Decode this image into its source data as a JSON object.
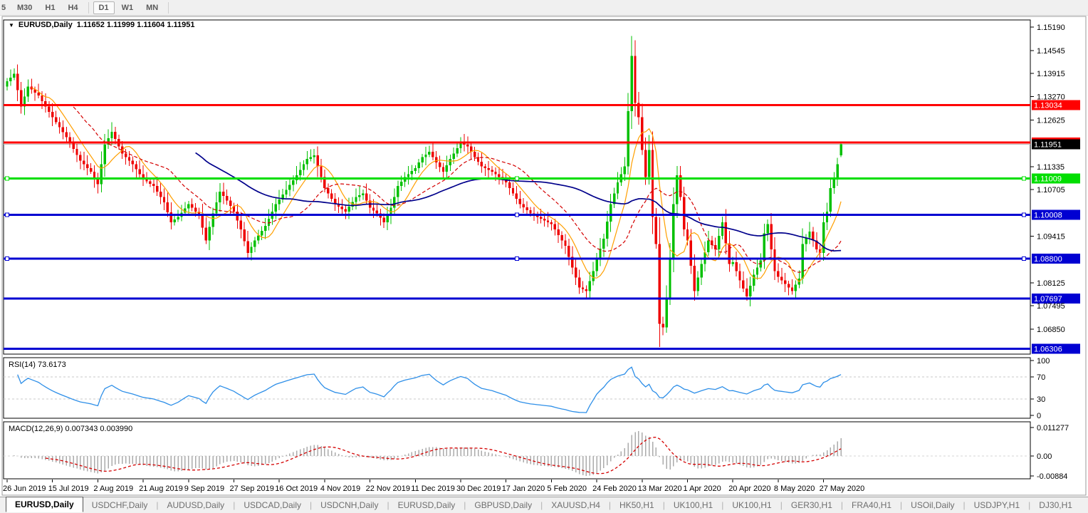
{
  "toolbar": {
    "timeframes": [
      {
        "label": "5",
        "active": false,
        "partial": true
      },
      {
        "label": "M30",
        "active": false
      },
      {
        "label": "H1",
        "active": false
      },
      {
        "label": "H4",
        "active": false
      },
      {
        "label": "D1",
        "active": true
      },
      {
        "label": "W1",
        "active": false
      },
      {
        "label": "MN",
        "active": false
      }
    ]
  },
  "chart_data": {
    "type": "candlestick",
    "symbol_timeframe_label": "EURUSD,Daily",
    "ohlc_string": "1.11652 1.11999 1.11604 1.11951",
    "last_candle": {
      "open": 1.11652,
      "high": 1.11999,
      "low": 1.11604,
      "close": 1.11951
    },
    "num_candles": 240,
    "close_anchors": [
      [
        0,
        1.137
      ],
      [
        2,
        1.139
      ],
      [
        4,
        1.13
      ],
      [
        6,
        1.1355
      ],
      [
        9,
        1.133
      ],
      [
        13,
        1.127
      ],
      [
        17,
        1.1215
      ],
      [
        21,
        1.115
      ],
      [
        24,
        1.112
      ],
      [
        26,
        1.1085
      ],
      [
        28,
        1.1195
      ],
      [
        30,
        1.123
      ],
      [
        33,
        1.117
      ],
      [
        36,
        1.114
      ],
      [
        39,
        1.11
      ],
      [
        42,
        1.108
      ],
      [
        45,
        1.1035
      ],
      [
        47,
        1.098
      ],
      [
        49,
        1.0995
      ],
      [
        52,
        1.103
      ],
      [
        55,
        1.1
      ],
      [
        57,
        1.093
      ],
      [
        59,
        1.1005
      ],
      [
        61,
        1.1065
      ],
      [
        63,
        1.104
      ],
      [
        65,
        1.101
      ],
      [
        67,
        1.096
      ],
      [
        69,
        1.0895
      ],
      [
        71,
        1.093
      ],
      [
        74,
        1.097
      ],
      [
        77,
        1.103
      ],
      [
        80,
        1.107
      ],
      [
        83,
        1.111
      ],
      [
        86,
        1.1155
      ],
      [
        88,
        1.1165
      ],
      [
        91,
        1.1075
      ],
      [
        94,
        1.103
      ],
      [
        97,
        1.101
      ],
      [
        100,
        1.105
      ],
      [
        102,
        1.106
      ],
      [
        104,
        1.102
      ],
      [
        106,
        1.1005
      ],
      [
        108,
        1.098
      ],
      [
        110,
        1.102
      ],
      [
        112,
        1.108
      ],
      [
        114,
        1.1105
      ],
      [
        117,
        1.113
      ],
      [
        119,
        1.116
      ],
      [
        121,
        1.1175
      ],
      [
        123,
        1.1145
      ],
      [
        125,
        1.112
      ],
      [
        127,
        1.1155
      ],
      [
        130,
        1.12
      ],
      [
        132,
        1.119
      ],
      [
        134,
        1.116
      ],
      [
        136,
        1.1135
      ],
      [
        139,
        1.112
      ],
      [
        141,
        1.1105
      ],
      [
        143,
        1.109
      ],
      [
        145,
        1.106
      ],
      [
        147,
        1.103
      ],
      [
        150,
        1.1005
      ],
      [
        153,
        1.099
      ],
      [
        156,
        1.0975
      ],
      [
        158,
        1.0945
      ],
      [
        160,
        1.0915
      ],
      [
        162,
        1.0855
      ],
      [
        164,
        1.08
      ],
      [
        166,
        1.079
      ],
      [
        168,
        1.0845
      ],
      [
        169,
        1.088
      ],
      [
        171,
        1.0935
      ],
      [
        173,
        1.103
      ],
      [
        175,
        1.109
      ],
      [
        177,
        1.1135
      ],
      [
        179,
        1.144
      ],
      [
        180,
        1.131
      ],
      [
        181,
        1.127
      ],
      [
        182,
        1.118
      ],
      [
        183,
        1.1105
      ],
      [
        184,
        1.118
      ],
      [
        185,
        1.0995
      ],
      [
        186,
        1.092
      ],
      [
        187,
        1.07
      ],
      [
        188,
        1.069
      ],
      [
        189,
        1.077
      ],
      [
        190,
        1.088
      ],
      [
        191,
        1.103
      ],
      [
        192,
        1.111
      ],
      [
        193,
        1.105
      ],
      [
        194,
        1.096
      ],
      [
        195,
        1.093
      ],
      [
        197,
        1.079
      ],
      [
        199,
        1.0865
      ],
      [
        201,
        1.093
      ],
      [
        203,
        1.0905
      ],
      [
        205,
        1.098
      ],
      [
        207,
        1.0865
      ],
      [
        208,
        1.087
      ],
      [
        210,
        1.082
      ],
      [
        212,
        1.0775
      ],
      [
        214,
        1.0835
      ],
      [
        216,
        1.0875
      ],
      [
        217,
        1.095
      ],
      [
        218,
        1.0975
      ],
      [
        219,
        1.0905
      ],
      [
        220,
        1.0845
      ],
      [
        221,
        1.083
      ],
      [
        223,
        1.081
      ],
      [
        225,
        1.079
      ],
      [
        227,
        1.0825
      ],
      [
        228,
        1.092
      ],
      [
        230,
        1.0955
      ],
      [
        232,
        1.0905
      ],
      [
        233,
        1.0895
      ],
      [
        234,
        1.098
      ],
      [
        235,
        1.101
      ],
      [
        236,
        1.1075
      ],
      [
        237,
        1.11
      ],
      [
        238,
        1.114
      ],
      [
        239,
        1.11951
      ]
    ],
    "extremes": [
      {
        "i": 179,
        "high": 1.1495
      },
      {
        "i": 187,
        "low": 1.0636
      }
    ],
    "price_axis": {
      "min": 1.062,
      "max": 1.1535,
      "ticks": [
        "1.15190",
        "1.14545",
        "1.13915",
        "1.13270",
        "1.12625",
        "1.11335",
        "1.10705",
        "1.09415",
        "1.08125",
        "1.07495",
        "1.06850"
      ],
      "tick_values": [
        1.1519,
        1.14545,
        1.13915,
        1.1327,
        1.12625,
        1.11335,
        1.10705,
        1.09415,
        1.08125,
        1.07495,
        1.0685
      ]
    },
    "x_axis_labels": [
      "26 Jun 2019",
      "15 Jul 2019",
      "2 Aug 2019",
      "21 Aug 2019",
      "9 Sep 2019",
      "27 Sep 2019",
      "16 Oct 2019",
      "4 Nov 2019",
      "22 Nov 2019",
      "11 Dec 2019",
      "30 Dec 2019",
      "17 Jan 2020",
      "5 Feb 2020",
      "24 Feb 2020",
      "13 Mar 2020",
      "1 Apr 2020",
      "20 Apr 2020",
      "8 May 2020",
      "27 May 2020"
    ],
    "candles_per_label": 13,
    "horizontal_levels": [
      {
        "value": 1.13034,
        "label": "1.13034",
        "color": "#FF0000",
        "handles": false
      },
      {
        "value": 1.12004,
        "label": "1.12004",
        "color": "#FF0000",
        "handles": false
      },
      {
        "value": 1.11009,
        "label": "1.11009",
        "color": "#00DE00",
        "handles": true
      },
      {
        "value": 1.10008,
        "label": "1.10008",
        "color": "#0000D2",
        "handles": true
      },
      {
        "value": 1.088,
        "label": "1.08800",
        "color": "#0000D2",
        "handles": true
      },
      {
        "value": 1.07697,
        "label": "1.07697",
        "color": "#0000D2",
        "handles": false
      },
      {
        "value": 1.06306,
        "label": "1.06306",
        "color": "#0000D2",
        "handles": false
      }
    ],
    "current_price": {
      "value": 1.11951,
      "label": "1.11951",
      "badge_color": "#000000",
      "line_color": "#BBBBBB"
    },
    "moving_averages": [
      {
        "period": 8,
        "color": "#FF9F00",
        "dash": ""
      },
      {
        "period": 20,
        "color": "#D40000",
        "dash": "5 3"
      },
      {
        "period": 55,
        "color": "#00008B",
        "dash": ""
      }
    ],
    "colors": {
      "candle_up": "#00C000",
      "candle_down": "#EE0000",
      "pane_border": "#000000",
      "background": "#FFFFFF",
      "axis_text": "#000000",
      "rsi_line": "#2E8FE8",
      "rsi_level_line": "#C9C9C9",
      "macd_histogram": "#ABABAB",
      "macd_signal": "#D40000"
    },
    "rsi": {
      "label": "RSI(14) 73.6173",
      "period": 14,
      "last_value": 73.6173,
      "levels": [
        70,
        30
      ],
      "scale_labels": [
        "100",
        "70",
        "30",
        "0"
      ],
      "scale_values": [
        100,
        70,
        30,
        0
      ]
    },
    "macd": {
      "label": "MACD(12,26,9) 0.007343 0.003990",
      "fast": 12,
      "slow": 26,
      "signal": 9,
      "last_main": 0.007343,
      "last_signal": 0.00399,
      "scale_labels": [
        "0.011277",
        "0.00",
        "-0.00884"
      ],
      "scale_values": [
        0.011277,
        0.0,
        -0.00884
      ]
    }
  },
  "tabs": {
    "items": [
      {
        "label": "EURUSD,Daily",
        "active": true
      },
      {
        "label": "USDCHF,Daily",
        "active": false
      },
      {
        "label": "AUDUSD,Daily",
        "active": false
      },
      {
        "label": "USDCAD,Daily",
        "active": false
      },
      {
        "label": "USDCNH,Daily",
        "active": false
      },
      {
        "label": "EURUSD,Daily",
        "active": false
      },
      {
        "label": "GBPUSD,Daily",
        "active": false
      },
      {
        "label": "XAUUSD,H4",
        "active": false
      },
      {
        "label": "HK50,H1",
        "active": false
      },
      {
        "label": "UK100,H1",
        "active": false
      },
      {
        "label": "UK100,H1",
        "active": false
      },
      {
        "label": "GER30,H1",
        "active": false
      },
      {
        "label": "FRA40,H1",
        "active": false
      },
      {
        "label": "USOil,Daily",
        "active": false
      },
      {
        "label": "USDJPY,H1",
        "active": false
      },
      {
        "label": "DJ30,H1",
        "active": false
      }
    ],
    "scroll_left_icon": "◄",
    "scroll_right_icon": "►"
  }
}
